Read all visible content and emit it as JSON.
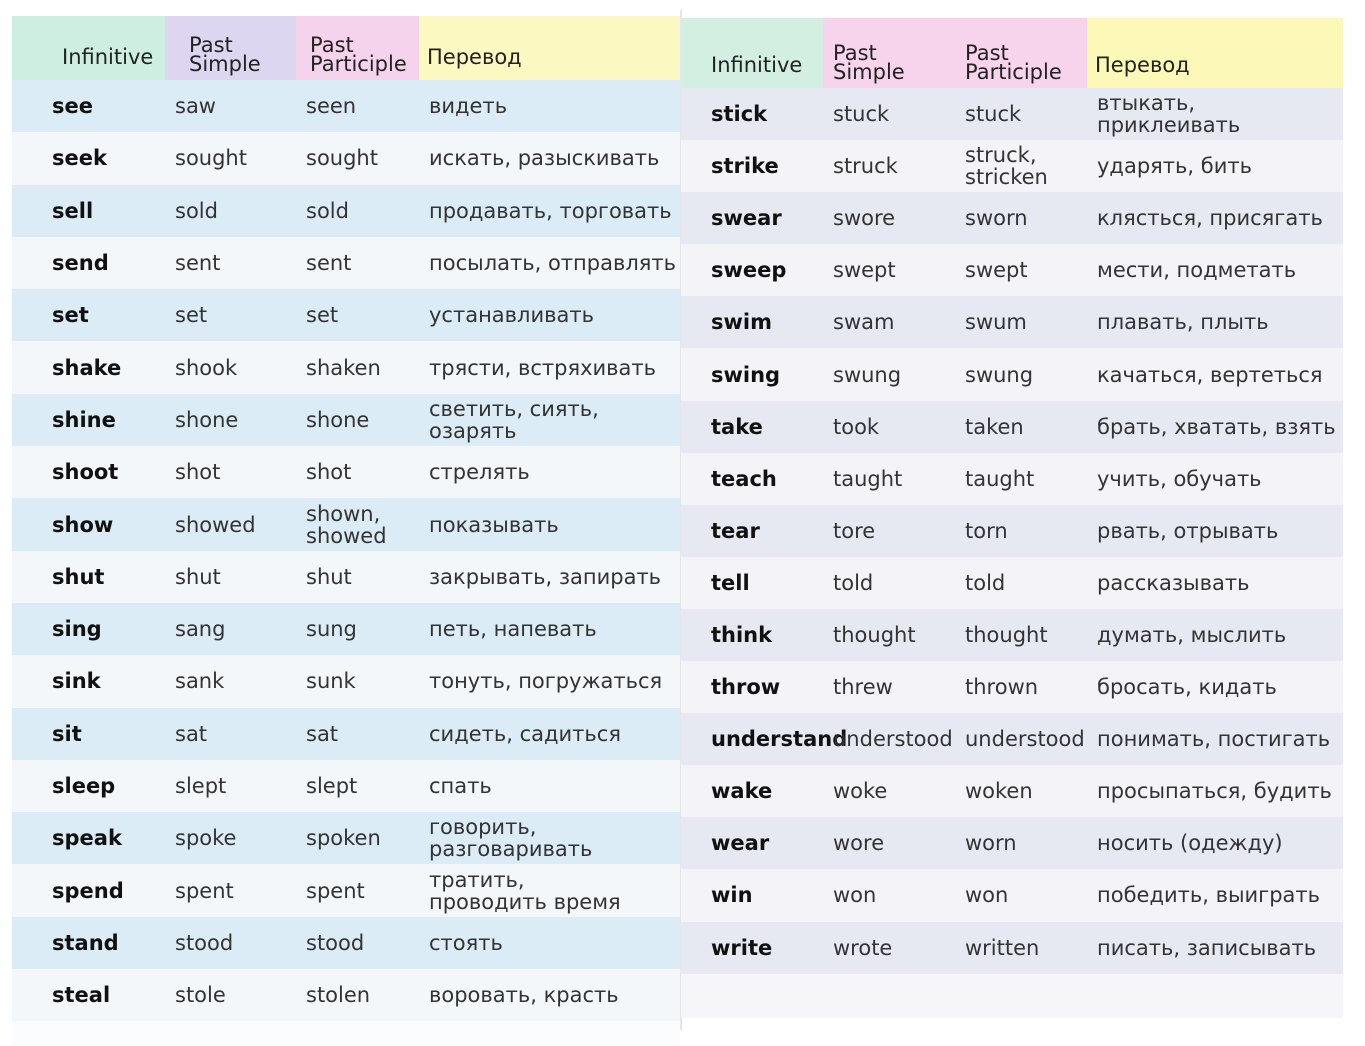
{
  "headers": {
    "infinitive": "Infinitive",
    "past_simple": "Past\nSimple",
    "past_participle": "Past\nParticiple",
    "translation": "Перевод"
  },
  "left_rows": [
    {
      "inf": "see",
      "ps": "saw",
      "pp": "seen",
      "tr": "видеть"
    },
    {
      "inf": "seek",
      "ps": "sought",
      "pp": "sought",
      "tr": "искать, разыскивать"
    },
    {
      "inf": "sell",
      "ps": "sold",
      "pp": "sold",
      "tr": "продавать, торговать"
    },
    {
      "inf": "send",
      "ps": "sent",
      "pp": "sent",
      "tr": "посылать, отправлять"
    },
    {
      "inf": "set",
      "ps": "set",
      "pp": "set",
      "tr": "устанавливать"
    },
    {
      "inf": "shake",
      "ps": "shook",
      "pp": "shaken",
      "tr": "трясти, встряхивать"
    },
    {
      "inf": "shine",
      "ps": "shone",
      "pp": "shone",
      "tr": "светить, сиять, озарять"
    },
    {
      "inf": "shoot",
      "ps": "shot",
      "pp": "shot",
      "tr": "стрелять"
    },
    {
      "inf": "show",
      "ps": "showed",
      "pp": "shown,\nshowed",
      "tr": "показывать"
    },
    {
      "inf": "shut",
      "ps": "shut",
      "pp": "shut",
      "tr": "закрывать, запирать"
    },
    {
      "inf": "sing",
      "ps": "sang",
      "pp": "sung",
      "tr": "петь, напевать"
    },
    {
      "inf": "sink",
      "ps": "sank",
      "pp": "sunk",
      "tr": "тонуть, погружаться"
    },
    {
      "inf": "sit",
      "ps": "sat",
      "pp": "sat",
      "tr": "сидеть, садиться"
    },
    {
      "inf": "sleep",
      "ps": "slept",
      "pp": "slept",
      "tr": "спать"
    },
    {
      "inf": "speak",
      "ps": "spoke",
      "pp": "spoken",
      "tr": "говорить,\nразговаривать"
    },
    {
      "inf": "spend",
      "ps": "spent",
      "pp": "spent",
      "tr": "тратить,\nпроводить время"
    },
    {
      "inf": "stand",
      "ps": "stood",
      "pp": "stood",
      "tr": "стоять"
    },
    {
      "inf": "steal",
      "ps": "stole",
      "pp": "stolen",
      "tr": "воровать, красть"
    }
  ],
  "right_rows": [
    {
      "inf": "stick",
      "ps": "stuck",
      "pp": "stuck",
      "tr": "втыкать, приклеивать"
    },
    {
      "inf": "strike",
      "ps": "struck",
      "pp": "struck,\nstricken",
      "tr": "ударять, бить"
    },
    {
      "inf": "swear",
      "ps": "swore",
      "pp": "sworn",
      "tr": "клясться, присягать"
    },
    {
      "inf": "sweep",
      "ps": "swept",
      "pp": "swept",
      "tr": "мести, подметать"
    },
    {
      "inf": "swim",
      "ps": "swam",
      "pp": "swum",
      "tr": "плавать, плыть"
    },
    {
      "inf": "swing",
      "ps": "swung",
      "pp": "swung",
      "tr": "качаться, вертеться"
    },
    {
      "inf": "take",
      "ps": "took",
      "pp": "taken",
      "tr": "брать, хватать, взять"
    },
    {
      "inf": "teach",
      "ps": "taught",
      "pp": "taught",
      "tr": "учить, обучать"
    },
    {
      "inf": "tear",
      "ps": "tore",
      "pp": "torn",
      "tr": "рвать, отрывать"
    },
    {
      "inf": "tell",
      "ps": "told",
      "pp": "told",
      "tr": "рассказывать"
    },
    {
      "inf": "think",
      "ps": "thought",
      "pp": "thought",
      "tr": "думать, мыслить"
    },
    {
      "inf": "throw",
      "ps": "threw",
      "pp": "thrown",
      "tr": "бросать, кидать"
    },
    {
      "inf": "understand",
      "ps": "understood",
      "pp": "understood",
      "tr": "понимать, постигать"
    },
    {
      "inf": "wake",
      "ps": "woke",
      "pp": "woken",
      "tr": "просыпаться, будить"
    },
    {
      "inf": "wear",
      "ps": "wore",
      "pp": "worn",
      "tr": "носить (одежду)"
    },
    {
      "inf": "win",
      "ps": "won",
      "pp": "won",
      "tr": "победить, выиграть"
    },
    {
      "inf": "write",
      "ps": "wrote",
      "pp": "written",
      "tr": "писать, записывать"
    }
  ]
}
